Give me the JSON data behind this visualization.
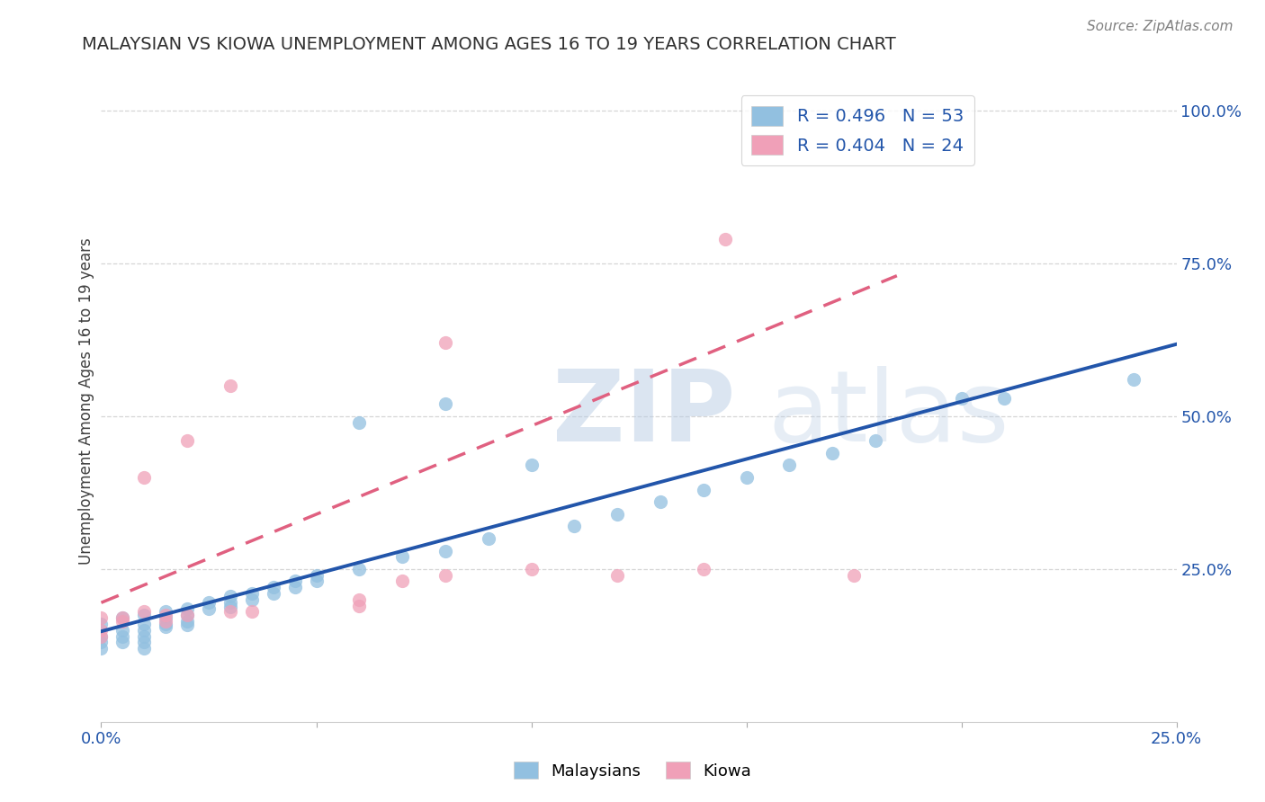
{
  "title": "MALAYSIAN VS KIOWA UNEMPLOYMENT AMONG AGES 16 TO 19 YEARS CORRELATION CHART",
  "source": "Source: ZipAtlas.com",
  "ylabel": "Unemployment Among Ages 16 to 19 years",
  "ytick_vals": [
    0.0,
    0.25,
    0.5,
    0.75,
    1.0
  ],
  "ytick_labels": [
    "",
    "25.0%",
    "50.0%",
    "75.0%",
    "100.0%"
  ],
  "xtick_vals": [
    0.0,
    0.05,
    0.1,
    0.15,
    0.2,
    0.25
  ],
  "xtick_labels": [
    "0.0%",
    "",
    "",
    "",
    "",
    "25.0%"
  ],
  "xmin": 0.0,
  "xmax": 0.25,
  "ymin": 0.0,
  "ymax": 1.05,
  "malaysian_color": "#92c0e0",
  "kiowa_color": "#f0a0b8",
  "malaysian_line_color": "#2255aa",
  "kiowa_line_color": "#e06080",
  "legend_label1": "R = 0.496   N = 53",
  "legend_label2": "R = 0.404   N = 24",
  "legend_text_color": "#2255aa",
  "malaysian_scatter": [
    [
      0.0,
      0.16
    ],
    [
      0.0,
      0.14
    ],
    [
      0.0,
      0.13
    ],
    [
      0.0,
      0.12
    ],
    [
      0.005,
      0.17
    ],
    [
      0.005,
      0.15
    ],
    [
      0.005,
      0.14
    ],
    [
      0.005,
      0.13
    ],
    [
      0.01,
      0.175
    ],
    [
      0.01,
      0.16
    ],
    [
      0.01,
      0.15
    ],
    [
      0.01,
      0.14
    ],
    [
      0.01,
      0.13
    ],
    [
      0.01,
      0.12
    ],
    [
      0.015,
      0.18
    ],
    [
      0.015,
      0.17
    ],
    [
      0.015,
      0.16
    ],
    [
      0.015,
      0.155
    ],
    [
      0.02,
      0.185
    ],
    [
      0.02,
      0.175
    ],
    [
      0.02,
      0.165
    ],
    [
      0.02,
      0.158
    ],
    [
      0.025,
      0.195
    ],
    [
      0.025,
      0.185
    ],
    [
      0.03,
      0.205
    ],
    [
      0.03,
      0.195
    ],
    [
      0.03,
      0.188
    ],
    [
      0.035,
      0.21
    ],
    [
      0.035,
      0.2
    ],
    [
      0.04,
      0.22
    ],
    [
      0.04,
      0.21
    ],
    [
      0.045,
      0.23
    ],
    [
      0.045,
      0.22
    ],
    [
      0.05,
      0.24
    ],
    [
      0.05,
      0.23
    ],
    [
      0.06,
      0.25
    ],
    [
      0.06,
      0.49
    ],
    [
      0.07,
      0.27
    ],
    [
      0.08,
      0.28
    ],
    [
      0.08,
      0.52
    ],
    [
      0.09,
      0.3
    ],
    [
      0.1,
      0.42
    ],
    [
      0.11,
      0.32
    ],
    [
      0.12,
      0.34
    ],
    [
      0.13,
      0.36
    ],
    [
      0.14,
      0.38
    ],
    [
      0.15,
      0.4
    ],
    [
      0.16,
      0.42
    ],
    [
      0.17,
      0.44
    ],
    [
      0.18,
      0.46
    ],
    [
      0.2,
      0.53
    ],
    [
      0.21,
      0.53
    ],
    [
      0.24,
      0.56
    ]
  ],
  "kiowa_scatter": [
    [
      0.0,
      0.17
    ],
    [
      0.0,
      0.15
    ],
    [
      0.0,
      0.14
    ],
    [
      0.005,
      0.17
    ],
    [
      0.005,
      0.165
    ],
    [
      0.01,
      0.4
    ],
    [
      0.01,
      0.18
    ],
    [
      0.015,
      0.175
    ],
    [
      0.015,
      0.165
    ],
    [
      0.02,
      0.46
    ],
    [
      0.02,
      0.175
    ],
    [
      0.03,
      0.55
    ],
    [
      0.03,
      0.18
    ],
    [
      0.035,
      0.18
    ],
    [
      0.06,
      0.19
    ],
    [
      0.06,
      0.2
    ],
    [
      0.07,
      0.23
    ],
    [
      0.08,
      0.24
    ],
    [
      0.08,
      0.62
    ],
    [
      0.1,
      0.25
    ],
    [
      0.12,
      0.24
    ],
    [
      0.14,
      0.25
    ],
    [
      0.145,
      0.79
    ],
    [
      0.175,
      0.24
    ]
  ],
  "malaysian_line_x": [
    0.0,
    0.25
  ],
  "malaysian_line_y": [
    0.148,
    0.618
  ],
  "kiowa_line_x": [
    0.0,
    0.185
  ],
  "kiowa_line_y": [
    0.195,
    0.73
  ]
}
